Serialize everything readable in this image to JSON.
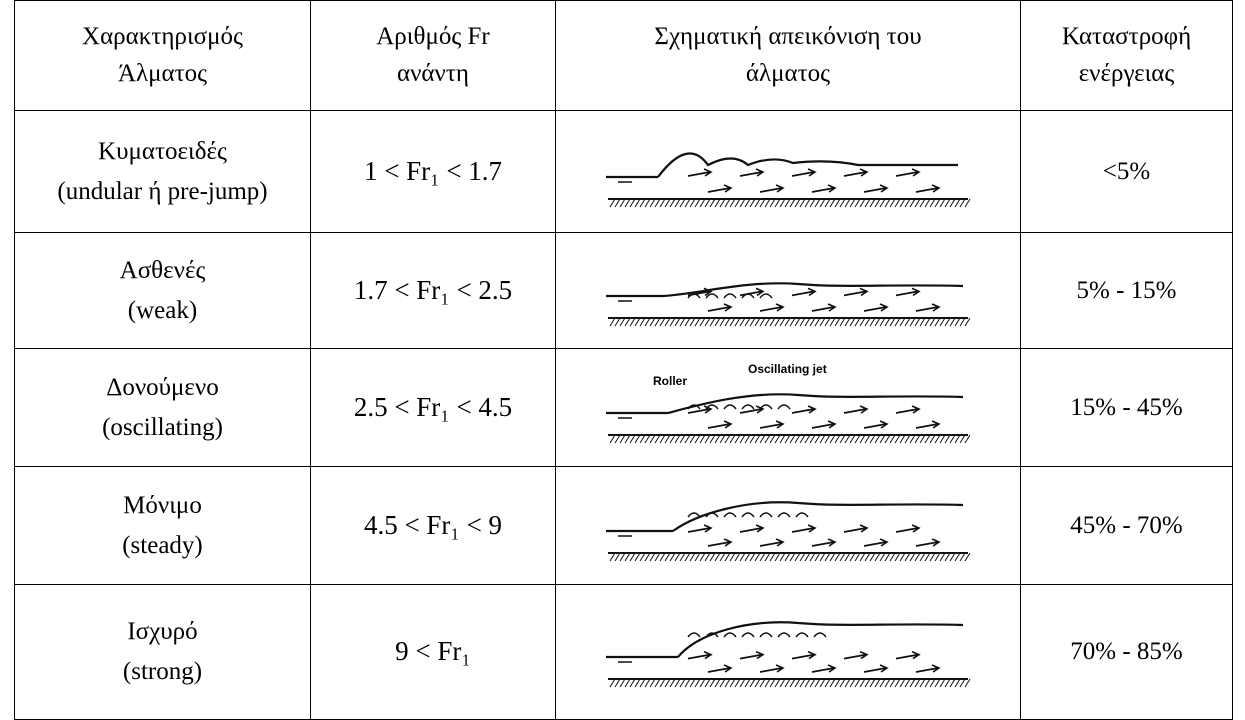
{
  "table": {
    "header": [
      [
        "Χαρακτηρισμός",
        "Άλματος"
      ],
      [
        "Αριθμός Fr",
        "ανάντη"
      ],
      [
        "Σχηματική απεικόνιση του",
        "άλματος"
      ],
      [
        "Καταστροφή",
        "ενέργειας"
      ]
    ],
    "rows": [
      {
        "type": [
          "Κυματοειδές",
          "(undular ή pre-jump)"
        ],
        "froude": "1 < Fr₁ < 1.7",
        "loss": "<5%"
      },
      {
        "type": [
          "Ασθενές",
          "(weak)"
        ],
        "froude": "1.7 < Fr₁ < 2.5",
        "loss": "5% - 15%"
      },
      {
        "type": [
          "Δονούμενο",
          "(oscillating)"
        ],
        "froude": "2.5 < Fr₁ < 4.5",
        "loss": "15% - 45%",
        "sketch_labels": [
          "Roller",
          "Oscillating  jet"
        ]
      },
      {
        "type": [
          "Μόνιμο",
          "(steady)"
        ],
        "froude": "4.5 < Fr₁ < 9",
        "loss": "45% - 70%"
      },
      {
        "type": [
          "Ισχυρό",
          "(strong)"
        ],
        "froude": "9 < Fr₁",
        "loss": "70% - 85%"
      }
    ]
  }
}
